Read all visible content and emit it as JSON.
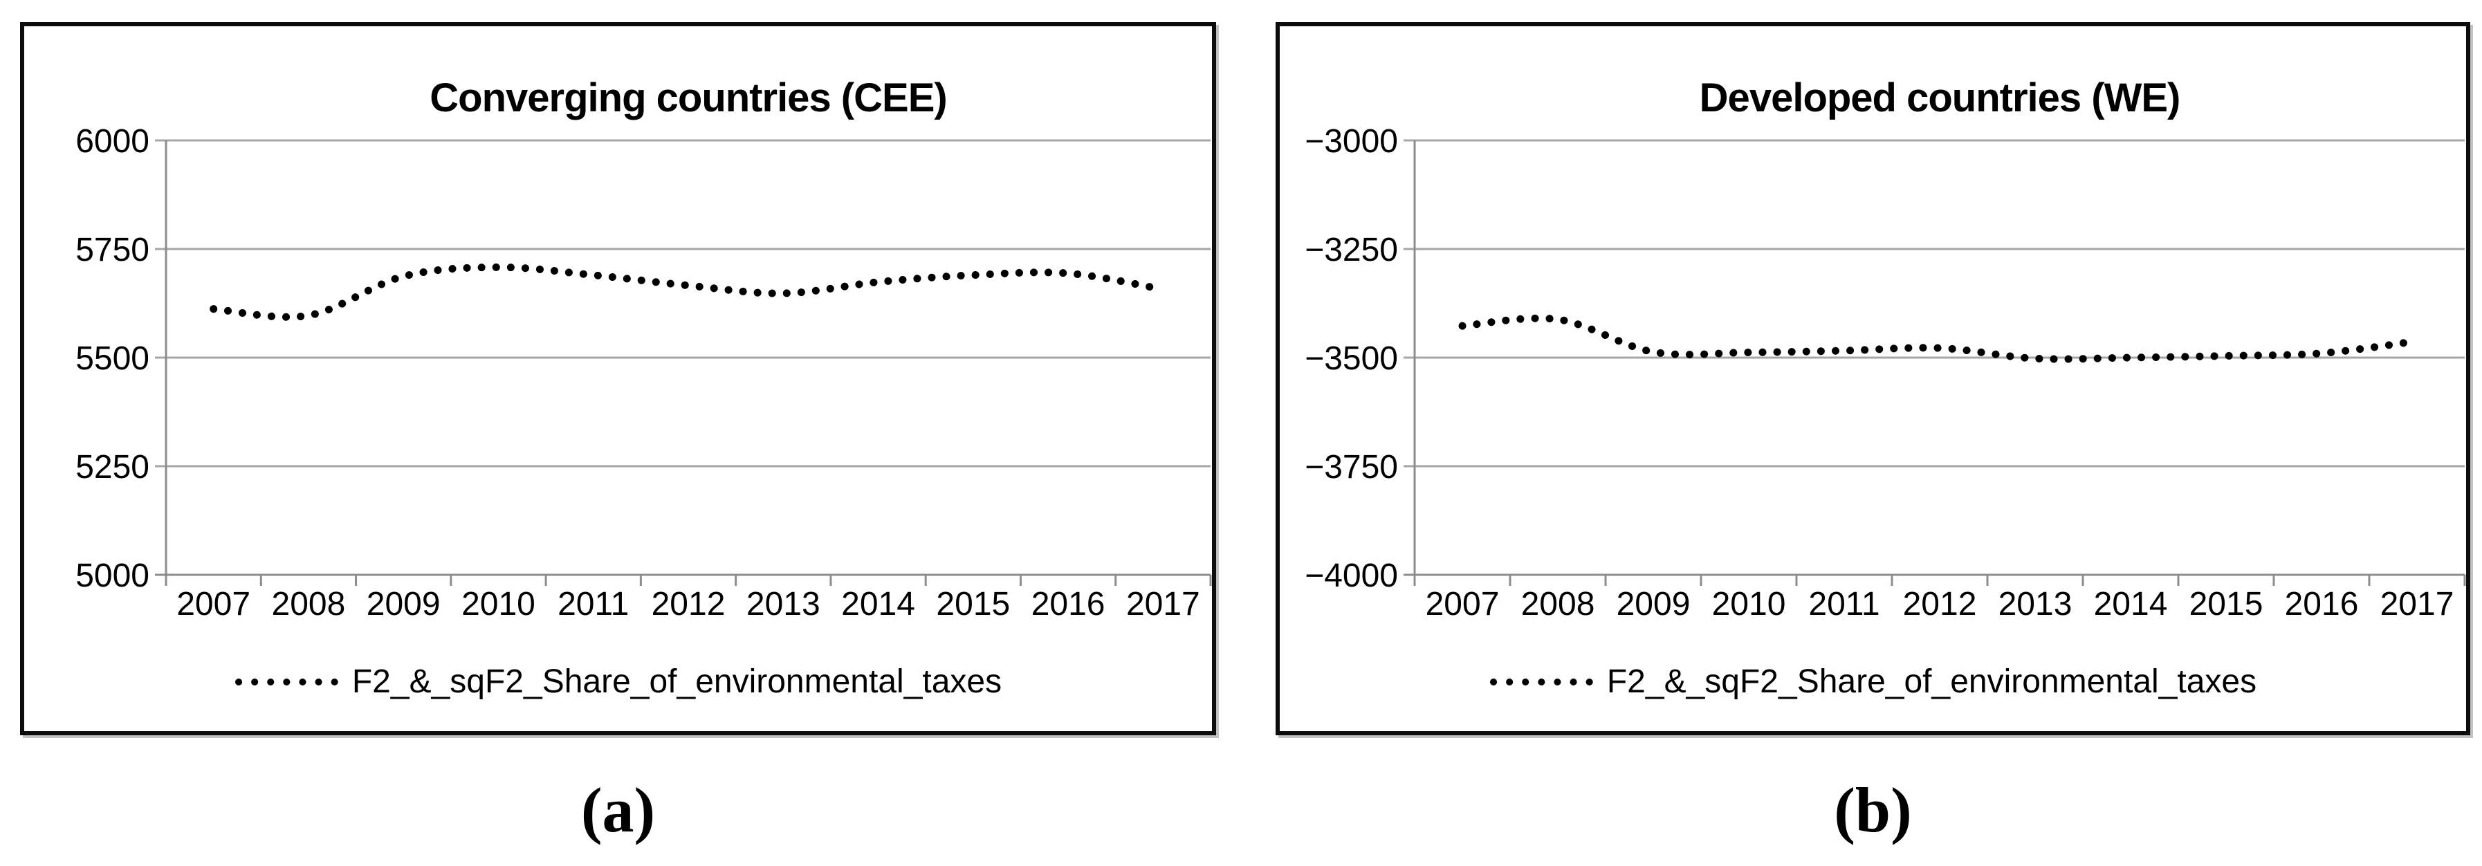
{
  "figure": {
    "caption_a": "(a)",
    "caption_b": "(b)"
  },
  "colors": {
    "background": "#ffffff",
    "panel_border": "#0d0d0d",
    "gridline": "#a6a6a6",
    "axis_line": "#8c8c8c",
    "series": "#000000",
    "text": "#000000"
  },
  "chart_data": [
    {
      "type": "line",
      "title": "Converging countries (CEE)",
      "categories": [
        "2007",
        "2008",
        "2009",
        "2010",
        "2011",
        "2012",
        "2013",
        "2014",
        "2015",
        "2016",
        "2017"
      ],
      "series": [
        {
          "name": "F2_&_sqF2_Share_of_environmental_taxes",
          "values": [
            5612,
            5597,
            5687,
            5708,
            5690,
            5666,
            5648,
            5674,
            5690,
            5694,
            5657
          ]
        }
      ],
      "ylim": [
        5000,
        6000
      ],
      "yticks": [
        6000,
        5750,
        5500,
        5250,
        5000
      ],
      "xlabel": "",
      "ylabel": "",
      "grid": "horizontal",
      "legend_position": "bottom-center",
      "line_style": "round-dot",
      "smoothed": true
    },
    {
      "type": "line",
      "title": "Developed countries (WE)",
      "categories": [
        "2007",
        "2008",
        "2009",
        "2010",
        "2011",
        "2012",
        "2013",
        "2014",
        "2015",
        "2016",
        "2017"
      ],
      "series": [
        {
          "name": "F2_&_sqF2_Share_of_environmental_taxes",
          "values": [
            -3427,
            -3412,
            -3487,
            -3488,
            -3484,
            -3478,
            -3502,
            -3500,
            -3496,
            -3490,
            -3462
          ]
        }
      ],
      "ylim": [
        -4000,
        -3000
      ],
      "yticks": [
        -3000,
        -3250,
        -3500,
        -3750,
        -4000
      ],
      "xlabel": "",
      "ylabel": "",
      "grid": "horizontal",
      "legend_position": "bottom-center",
      "line_style": "round-dot",
      "smoothed": true
    }
  ]
}
